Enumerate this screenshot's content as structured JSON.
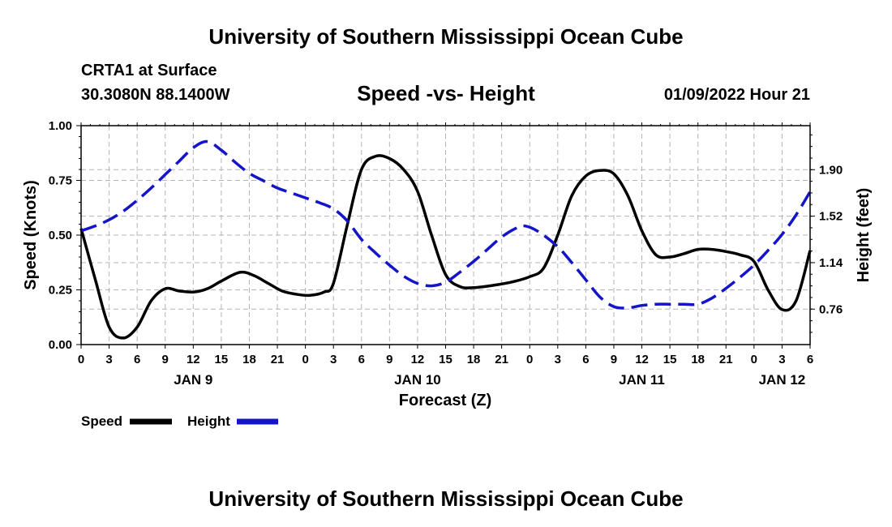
{
  "header": {
    "title": "University of Southern Mississippi Ocean Cube",
    "station": "CRTA1 at Surface",
    "coordinates": "30.3080N  88.1400W",
    "subtitle": "Speed -vs- Height",
    "datetime": "01/09/2022 Hour 21"
  },
  "footer": {
    "title": "University of Southern Mississippi Ocean Cube"
  },
  "legend": {
    "speed_label": "Speed",
    "height_label": "Height"
  },
  "chart_data": {
    "type": "line",
    "x_unit": "forecast hours since 00Z Jan 9",
    "x_range": [
      0,
      78
    ],
    "x_tick_hours": [
      0,
      3,
      6,
      9,
      12,
      15,
      18,
      21,
      24,
      27,
      30,
      33,
      36,
      39,
      42,
      45,
      48,
      51,
      54,
      57,
      60,
      63,
      66,
      69,
      72,
      75,
      78
    ],
    "x_tick_labels": [
      "0",
      "3",
      "6",
      "9",
      "12",
      "15",
      "18",
      "21",
      "0",
      "3",
      "6",
      "9",
      "12",
      "15",
      "18",
      "21",
      "0",
      "3",
      "6",
      "9",
      "12",
      "15",
      "18",
      "21",
      "0",
      "3",
      "6"
    ],
    "day_labels": [
      {
        "hour": 12,
        "label": "JAN 9"
      },
      {
        "hour": 36,
        "label": "JAN 10"
      },
      {
        "hour": 60,
        "label": "JAN 11"
      },
      {
        "hour": 75,
        "label": "JAN 12"
      }
    ],
    "xlabel": "Forecast (Z)",
    "left_axis": {
      "label": "Speed (Knots)",
      "range": [
        0,
        1
      ],
      "ticks": [
        0,
        0.25,
        0.5,
        0.75,
        1
      ],
      "tick_labels": [
        "0.00",
        "0.25",
        "0.50",
        "0.75",
        "1.00"
      ]
    },
    "right_axis": {
      "label": "Height (feet)",
      "range": [
        0.47,
        2.26
      ],
      "ticks": [
        0.76,
        1.14,
        1.52,
        1.9
      ],
      "tick_labels": [
        "0.76",
        "1.14",
        "1.52",
        "1.90"
      ]
    },
    "grid": true,
    "series": [
      {
        "name": "Speed",
        "axis": "left",
        "color": "#000000",
        "style": "solid",
        "points": [
          [
            0,
            0.53
          ],
          [
            1.5,
            0.3
          ],
          [
            3,
            0.08
          ],
          [
            4.5,
            0.03
          ],
          [
            6,
            0.08
          ],
          [
            7.5,
            0.2
          ],
          [
            9,
            0.255
          ],
          [
            10.5,
            0.245
          ],
          [
            12,
            0.24
          ],
          [
            13.5,
            0.255
          ],
          [
            15,
            0.29
          ],
          [
            17,
            0.33
          ],
          [
            18.5,
            0.315
          ],
          [
            20,
            0.28
          ],
          [
            21.5,
            0.245
          ],
          [
            23,
            0.23
          ],
          [
            24.5,
            0.225
          ],
          [
            26,
            0.24
          ],
          [
            27,
            0.28
          ],
          [
            28.5,
            0.55
          ],
          [
            30,
            0.8
          ],
          [
            31.5,
            0.86
          ],
          [
            33,
            0.85
          ],
          [
            34.5,
            0.8
          ],
          [
            36,
            0.7
          ],
          [
            37.5,
            0.5
          ],
          [
            39,
            0.32
          ],
          [
            40.5,
            0.265
          ],
          [
            42,
            0.26
          ],
          [
            44,
            0.27
          ],
          [
            46,
            0.285
          ],
          [
            48,
            0.31
          ],
          [
            49.5,
            0.35
          ],
          [
            51,
            0.5
          ],
          [
            52.5,
            0.68
          ],
          [
            54,
            0.77
          ],
          [
            55.5,
            0.795
          ],
          [
            57,
            0.78
          ],
          [
            58.5,
            0.68
          ],
          [
            60,
            0.52
          ],
          [
            61.5,
            0.41
          ],
          [
            63,
            0.4
          ],
          [
            64.5,
            0.415
          ],
          [
            66,
            0.435
          ],
          [
            67.5,
            0.435
          ],
          [
            69,
            0.425
          ],
          [
            70.5,
            0.41
          ],
          [
            72,
            0.38
          ],
          [
            73.5,
            0.25
          ],
          [
            75,
            0.16
          ],
          [
            76.5,
            0.2
          ],
          [
            78,
            0.43
          ]
        ]
      },
      {
        "name": "Height",
        "axis": "right",
        "color": "#1414c8",
        "style": "dashed",
        "points": [
          [
            0,
            1.4
          ],
          [
            1.5,
            1.44
          ],
          [
            3,
            1.49
          ],
          [
            4.5,
            1.56
          ],
          [
            6,
            1.65
          ],
          [
            7.5,
            1.75
          ],
          [
            9,
            1.86
          ],
          [
            10.5,
            1.97
          ],
          [
            12,
            2.08
          ],
          [
            13.5,
            2.13
          ],
          [
            15,
            2.06
          ],
          [
            16.5,
            1.96
          ],
          [
            18,
            1.87
          ],
          [
            19.5,
            1.81
          ],
          [
            21,
            1.75
          ],
          [
            22.5,
            1.71
          ],
          [
            24,
            1.67
          ],
          [
            25.5,
            1.63
          ],
          [
            27,
            1.58
          ],
          [
            28.5,
            1.48
          ],
          [
            30,
            1.33
          ],
          [
            31.5,
            1.22
          ],
          [
            33,
            1.12
          ],
          [
            34.5,
            1.03
          ],
          [
            36,
            0.97
          ],
          [
            37.5,
            0.95
          ],
          [
            39,
            0.98
          ],
          [
            40.5,
            1.06
          ],
          [
            42,
            1.15
          ],
          [
            43.5,
            1.25
          ],
          [
            45,
            1.35
          ],
          [
            46.5,
            1.42
          ],
          [
            47.5,
            1.44
          ],
          [
            49,
            1.39
          ],
          [
            51,
            1.27
          ],
          [
            52.5,
            1.14
          ],
          [
            54,
            1.0
          ],
          [
            55.5,
            0.86
          ],
          [
            57,
            0.78
          ],
          [
            58.5,
            0.77
          ],
          [
            60,
            0.79
          ],
          [
            61.5,
            0.8
          ],
          [
            63,
            0.8
          ],
          [
            64.5,
            0.8
          ],
          [
            66,
            0.8
          ],
          [
            67.5,
            0.85
          ],
          [
            69,
            0.93
          ],
          [
            70.5,
            1.02
          ],
          [
            72,
            1.12
          ],
          [
            73.5,
            1.24
          ],
          [
            75,
            1.37
          ],
          [
            76.5,
            1.53
          ],
          [
            78,
            1.72
          ]
        ]
      }
    ]
  }
}
